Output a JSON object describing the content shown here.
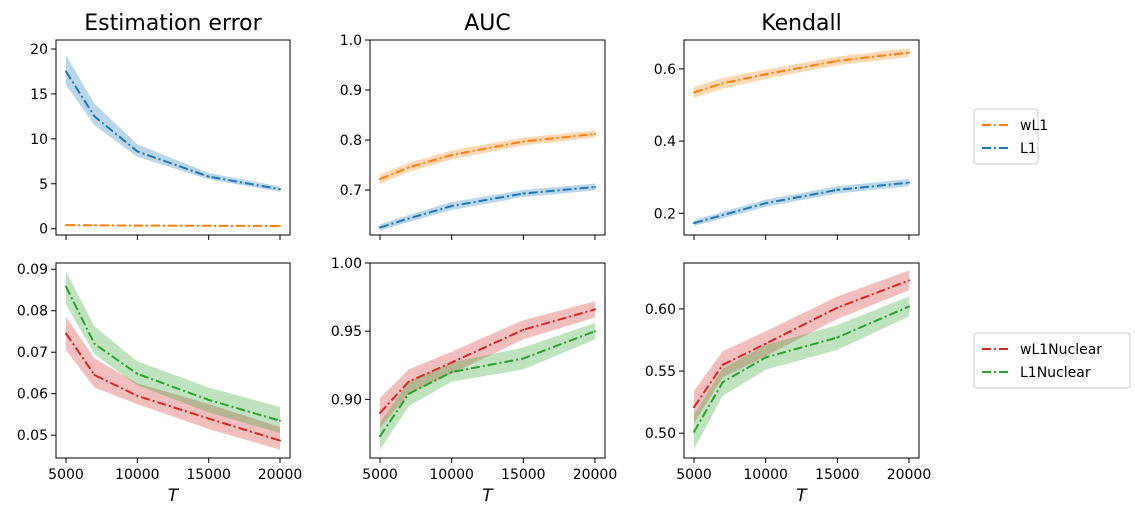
{
  "figure": {
    "colors": {
      "wL1": "#ff7f0e",
      "L1": "#1f77b4",
      "wL1Nuclear": "#d62728",
      "L1Nuclear": "#2ca02c"
    }
  },
  "legends": [
    {
      "entries": [
        {
          "label": "wL1",
          "series": "wL1"
        },
        {
          "label": "L1",
          "series": "L1"
        }
      ]
    },
    {
      "entries": [
        {
          "label": "wL1Nuclear",
          "series": "wL1Nuclear"
        },
        {
          "label": "L1Nuclear",
          "series": "L1Nuclear"
        }
      ]
    }
  ],
  "chart_data": [
    {
      "type": "line",
      "title": "Estimation error",
      "xlabel": "",
      "x": [
        5000,
        7000,
        10000,
        15000,
        20000
      ],
      "ylim": [
        -0.7,
        21
      ],
      "yticks": [
        0,
        5,
        10,
        15,
        20
      ],
      "ytick_labels": [
        "0",
        "5",
        "10",
        "15",
        "20"
      ],
      "xticks": [
        5000,
        10000,
        15000,
        20000
      ],
      "xtick_labels": [
        "",
        "",
        "",
        ""
      ],
      "series": [
        {
          "name": "L1",
          "key": "L1",
          "values": [
            17.5,
            12.5,
            8.6,
            5.8,
            4.4
          ],
          "lower": [
            16.0,
            11.5,
            8.0,
            5.5,
            4.1
          ],
          "upper": [
            19.3,
            13.9,
            9.4,
            6.2,
            4.7
          ]
        },
        {
          "name": "wL1",
          "key": "wL1",
          "values": [
            0.4,
            0.38,
            0.35,
            0.32,
            0.3
          ],
          "lower": [
            0.32,
            0.3,
            0.28,
            0.26,
            0.24
          ],
          "upper": [
            0.48,
            0.46,
            0.42,
            0.38,
            0.36
          ]
        }
      ]
    },
    {
      "type": "line",
      "title": "AUC",
      "xlabel": "",
      "x": [
        5000,
        7000,
        10000,
        15000,
        20000
      ],
      "ylim": [
        0.61,
        1.0
      ],
      "yticks": [
        0.7,
        0.8,
        0.9,
        1.0
      ],
      "ytick_labels": [
        "0.7",
        "0.8",
        "0.9",
        "1.0"
      ],
      "xticks": [
        5000,
        10000,
        15000,
        20000
      ],
      "xtick_labels": [
        "",
        "",
        "",
        ""
      ],
      "series": [
        {
          "name": "wL1",
          "key": "wL1",
          "values": [
            0.722,
            0.745,
            0.77,
            0.797,
            0.812
          ],
          "lower": [
            0.712,
            0.736,
            0.761,
            0.789,
            0.805
          ],
          "upper": [
            0.732,
            0.754,
            0.779,
            0.805,
            0.819
          ]
        },
        {
          "name": "L1",
          "key": "L1",
          "values": [
            0.625,
            0.643,
            0.668,
            0.693,
            0.706
          ],
          "lower": [
            0.619,
            0.636,
            0.66,
            0.686,
            0.699
          ],
          "upper": [
            0.631,
            0.65,
            0.676,
            0.7,
            0.713
          ]
        }
      ]
    },
    {
      "type": "line",
      "title": "Kendall",
      "xlabel": "",
      "x": [
        5000,
        7000,
        10000,
        15000,
        20000
      ],
      "ylim": [
        0.14,
        0.68
      ],
      "yticks": [
        0.2,
        0.4,
        0.6
      ],
      "ytick_labels": [
        "0.2",
        "0.4",
        "0.6"
      ],
      "xticks": [
        5000,
        10000,
        15000,
        20000
      ],
      "xtick_labels": [
        "",
        "",
        "",
        ""
      ],
      "series": [
        {
          "name": "wL1",
          "key": "wL1",
          "values": [
            0.535,
            0.56,
            0.585,
            0.622,
            0.645
          ],
          "lower": [
            0.52,
            0.545,
            0.572,
            0.61,
            0.633
          ],
          "upper": [
            0.55,
            0.575,
            0.598,
            0.634,
            0.657
          ]
        },
        {
          "name": "L1",
          "key": "L1",
          "values": [
            0.173,
            0.195,
            0.228,
            0.265,
            0.285
          ],
          "lower": [
            0.165,
            0.186,
            0.218,
            0.255,
            0.275
          ],
          "upper": [
            0.181,
            0.204,
            0.238,
            0.275,
            0.295
          ]
        }
      ]
    },
    {
      "type": "line",
      "title": "",
      "xlabel": "T",
      "x": [
        5000,
        7000,
        10000,
        15000,
        20000
      ],
      "ylim": [
        0.0445,
        0.0915
      ],
      "yticks": [
        0.05,
        0.06,
        0.07,
        0.08,
        0.09
      ],
      "ytick_labels": [
        "0.05",
        "0.06",
        "0.07",
        "0.08",
        "0.09"
      ],
      "xticks": [
        5000,
        10000,
        15000,
        20000
      ],
      "xtick_labels": [
        "5000",
        "10000",
        "15000",
        "20000"
      ],
      "series": [
        {
          "name": "wL1Nuclear",
          "key": "wL1Nuclear",
          "values": [
            0.0745,
            0.0645,
            0.0595,
            0.054,
            0.0487
          ],
          "lower": [
            0.0705,
            0.0615,
            0.0575,
            0.0515,
            0.0465
          ],
          "upper": [
            0.0785,
            0.0685,
            0.0625,
            0.0575,
            0.052
          ]
        },
        {
          "name": "L1Nuclear",
          "key": "L1Nuclear",
          "values": [
            0.0858,
            0.072,
            0.0648,
            0.0585,
            0.0535
          ],
          "lower": [
            0.0815,
            0.0695,
            0.062,
            0.0555,
            0.0505
          ],
          "upper": [
            0.0895,
            0.0762,
            0.0678,
            0.0615,
            0.0568
          ]
        }
      ]
    },
    {
      "type": "line",
      "title": "",
      "xlabel": "T",
      "x": [
        5000,
        7000,
        10000,
        15000,
        20000
      ],
      "ylim": [
        0.857,
        1.0
      ],
      "yticks": [
        0.9,
        0.95,
        1.0
      ],
      "ytick_labels": [
        "0.90",
        "0.95",
        "1.00"
      ],
      "xticks": [
        5000,
        10000,
        15000,
        20000
      ],
      "xtick_labels": [
        "5000",
        "10000",
        "15000",
        "20000"
      ],
      "series": [
        {
          "name": "wL1Nuclear",
          "key": "wL1Nuclear",
          "values": [
            0.89,
            0.913,
            0.927,
            0.951,
            0.966
          ],
          "lower": [
            0.879,
            0.904,
            0.919,
            0.944,
            0.96
          ],
          "upper": [
            0.901,
            0.922,
            0.935,
            0.958,
            0.972
          ]
        },
        {
          "name": "L1Nuclear",
          "key": "L1Nuclear",
          "values": [
            0.873,
            0.904,
            0.92,
            0.93,
            0.95
          ],
          "lower": [
            0.863,
            0.895,
            0.913,
            0.922,
            0.944
          ],
          "upper": [
            0.883,
            0.913,
            0.927,
            0.938,
            0.956
          ]
        }
      ]
    },
    {
      "type": "line",
      "title": "",
      "xlabel": "T",
      "x": [
        5000,
        7000,
        10000,
        15000,
        20000
      ],
      "ylim": [
        0.48,
        0.637
      ],
      "yticks": [
        0.5,
        0.55,
        0.6
      ],
      "ytick_labels": [
        "0.50",
        "0.55",
        "0.60"
      ],
      "xticks": [
        5000,
        10000,
        15000,
        20000
      ],
      "xtick_labels": [
        "5000",
        "10000",
        "15000",
        "20000"
      ],
      "series": [
        {
          "name": "wL1Nuclear",
          "key": "wL1Nuclear",
          "values": [
            0.521,
            0.555,
            0.572,
            0.601,
            0.623
          ],
          "lower": [
            0.508,
            0.545,
            0.562,
            0.592,
            0.615
          ],
          "upper": [
            0.534,
            0.566,
            0.582,
            0.61,
            0.631
          ]
        },
        {
          "name": "L1Nuclear",
          "key": "L1Nuclear",
          "values": [
            0.501,
            0.541,
            0.561,
            0.577,
            0.602
          ],
          "lower": [
            0.487,
            0.53,
            0.551,
            0.567,
            0.594
          ],
          "upper": [
            0.515,
            0.552,
            0.571,
            0.587,
            0.61
          ]
        }
      ]
    }
  ]
}
